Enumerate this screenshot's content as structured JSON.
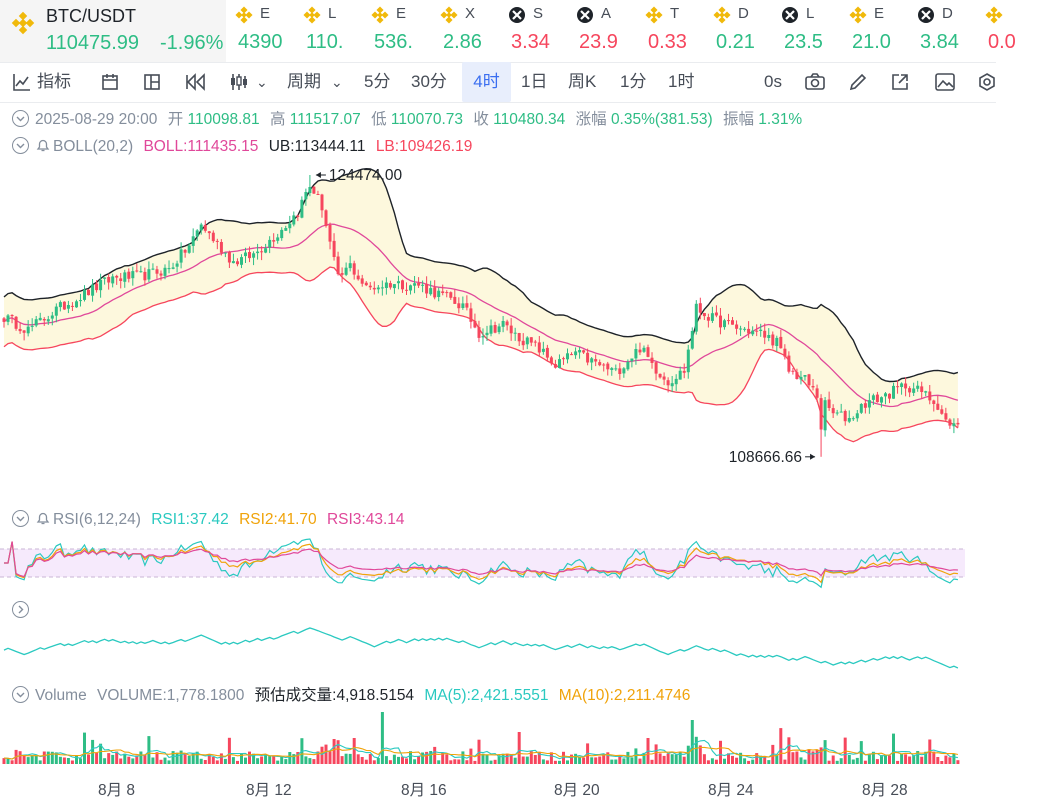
{
  "main_pair": {
    "name": "BTC/USDT",
    "price": "110475.99",
    "change": "-1.96%"
  },
  "tickers": [
    {
      "sym": "E",
      "val": "4390",
      "color": "#2ebd85",
      "icon": "binance-icon"
    },
    {
      "sym": "L",
      "val": "110.",
      "color": "#2ebd85",
      "icon": "binance-icon"
    },
    {
      "sym": "E",
      "val": "536.",
      "color": "#2ebd85",
      "icon": "binance-icon"
    },
    {
      "sym": "X",
      "val": "2.86",
      "color": "#2ebd85",
      "icon": "binance-icon"
    },
    {
      "sym": "S",
      "val": "3.34",
      "color": "#f6465d",
      "icon": "token-icon"
    },
    {
      "sym": "A",
      "val": "23.9",
      "color": "#f6465d",
      "icon": "token-icon"
    },
    {
      "sym": "T",
      "val": "0.33",
      "color": "#f6465d",
      "icon": "binance-icon"
    },
    {
      "sym": "D",
      "val": "0.21",
      "color": "#2ebd85",
      "icon": "binance-icon"
    },
    {
      "sym": "L",
      "val": "23.5",
      "color": "#2ebd85",
      "icon": "token-icon"
    },
    {
      "sym": "E",
      "val": "21.0",
      "color": "#2ebd85",
      "icon": "binance-icon"
    },
    {
      "sym": "D",
      "val": "3.84",
      "color": "#2ebd85",
      "icon": "token-icon"
    },
    {
      "sym": "",
      "val": "0.0",
      "color": "#f6465d",
      "icon": "binance-icon"
    }
  ],
  "toolbar": {
    "indicators": "指标",
    "period": "周期",
    "p5m": "5分",
    "p30m": "30分",
    "p4h": "4时",
    "p1d": "1日",
    "p1w": "周K",
    "p1m": "1分",
    "p1h": "1时",
    "countdown": "0s"
  },
  "ohlc": {
    "date": "2025-08-29 20:00",
    "open_label": "开",
    "open": "110098.81",
    "high_label": "高",
    "high": "111517.07",
    "low_label": "低",
    "low": "110070.73",
    "close_label": "收",
    "close": "110480.34",
    "chg_label": "涨幅",
    "chg": "0.35%(381.53)",
    "amp_label": "振幅",
    "amp": "1.31%"
  },
  "boll": {
    "name": "BOLL(20,2)",
    "mid": "BOLL:111435.15",
    "ub": "UB:113444.11",
    "lb": "LB:109426.19"
  },
  "rsi": {
    "name": "RSI(6,12,24)",
    "r1": "RSI1:37.42",
    "r2": "RSI2:41.70",
    "r3": "RSI3:43.14"
  },
  "volume": {
    "name": "Volume",
    "vol": "VOLUME:1,778.1800",
    "est": "预估成交量:4,918.5154",
    "ma5": "MA(5):2,421.5551",
    "ma10": "MA(10):2,211.4746"
  },
  "chart_data": {
    "type": "candlestick",
    "interval": "4h",
    "x_labels": [
      "8月 8",
      "8月 12",
      "8月 16",
      "8月 20",
      "8月 24",
      "8月 28"
    ],
    "high_marker": "124474.00",
    "low_marker": "108666.66",
    "anchors_close": [
      [
        0,
        116500
      ],
      [
        6,
        115800
      ],
      [
        13,
        116900
      ],
      [
        20,
        117800
      ],
      [
        27,
        118700
      ],
      [
        34,
        118800
      ],
      [
        41,
        119200
      ],
      [
        46,
        120500
      ],
      [
        49,
        121700
      ],
      [
        53,
        120600
      ],
      [
        57,
        119600
      ],
      [
        62,
        120000
      ],
      [
        68,
        121200
      ],
      [
        73,
        122400
      ],
      [
        76,
        124000
      ],
      [
        79,
        122700
      ],
      [
        83,
        118600
      ],
      [
        86,
        119400
      ],
      [
        90,
        118100
      ],
      [
        96,
        118400
      ],
      [
        103,
        118300
      ],
      [
        110,
        117600
      ],
      [
        114,
        117100
      ],
      [
        118,
        115600
      ],
      [
        124,
        116100
      ],
      [
        127,
        115500
      ],
      [
        133,
        114700
      ],
      [
        137,
        113800
      ],
      [
        142,
        114500
      ],
      [
        147,
        113900
      ],
      [
        152,
        113400
      ],
      [
        158,
        114800
      ],
      [
        162,
        113600
      ],
      [
        165,
        112900
      ],
      [
        169,
        113500
      ],
      [
        172,
        117000
      ],
      [
        176,
        116400
      ],
      [
        182,
        115900
      ],
      [
        188,
        115600
      ],
      [
        192,
        115100
      ],
      [
        195,
        113500
      ],
      [
        199,
        113000
      ],
      [
        203,
        111800
      ],
      [
        206,
        111100
      ],
      [
        210,
        110800
      ],
      [
        214,
        111700
      ],
      [
        219,
        112100
      ],
      [
        224,
        112700
      ],
      [
        228,
        112300
      ],
      [
        232,
        111600
      ],
      [
        235,
        110300
      ],
      [
        237,
        110480
      ]
    ],
    "rsi_color": {
      "rsi1": "#2ac9c0",
      "rsi2": "#f0a30a",
      "rsi3": "#e0489a"
    },
    "colors": {
      "up": "#2ebd85",
      "down": "#f6465d",
      "ub_lb": "#1e2329",
      "mid": "#e0489a",
      "band": "#fdf8dd",
      "lb_line": "#f6465d"
    }
  }
}
